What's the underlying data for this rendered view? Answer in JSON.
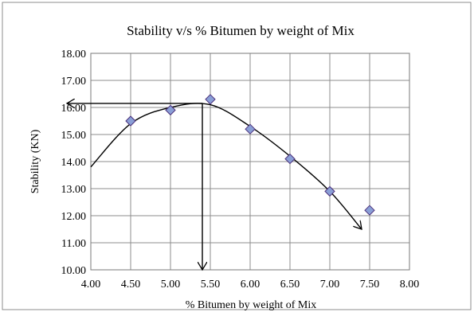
{
  "chart_data": {
    "type": "scatter",
    "title": "Stability v/s % Bitumen by weight of Mix",
    "xlabel": "% Bitumen by weight of Mix",
    "ylabel": "Stability (KN)",
    "xlim": [
      4.0,
      8.0
    ],
    "ylim": [
      10.0,
      18.0
    ],
    "x_ticks": [
      "4.00",
      "4.50",
      "5.00",
      "5.50",
      "6.00",
      "6.50",
      "7.00",
      "7.50",
      "8.00"
    ],
    "y_ticks": [
      "10.00",
      "11.00",
      "12.00",
      "13.00",
      "14.00",
      "15.00",
      "16.00",
      "17.00",
      "18.00"
    ],
    "grid": true,
    "legend": "none",
    "marker": "diamond",
    "marker_color": "#8a9fd6",
    "marker_edge_color": "#4a2f7a",
    "series": [
      {
        "x": [
          4.5,
          5.0,
          5.5,
          6.0,
          6.5,
          7.0,
          7.5
        ],
        "y": [
          15.5,
          15.9,
          16.3,
          15.2,
          14.1,
          12.9,
          12.2
        ]
      }
    ],
    "trend_curve": {
      "type": "fitted-curve",
      "x": [
        4.0,
        4.5,
        5.0,
        5.5,
        6.0,
        6.5,
        7.0,
        7.4
      ],
      "y": [
        13.8,
        15.4,
        16.0,
        16.1,
        15.3,
        14.2,
        12.9,
        11.5
      ],
      "arrow_at_end": true
    },
    "annotations": [
      {
        "type": "optimum-arrows",
        "x": 5.4,
        "y": 16.15
      }
    ]
  }
}
